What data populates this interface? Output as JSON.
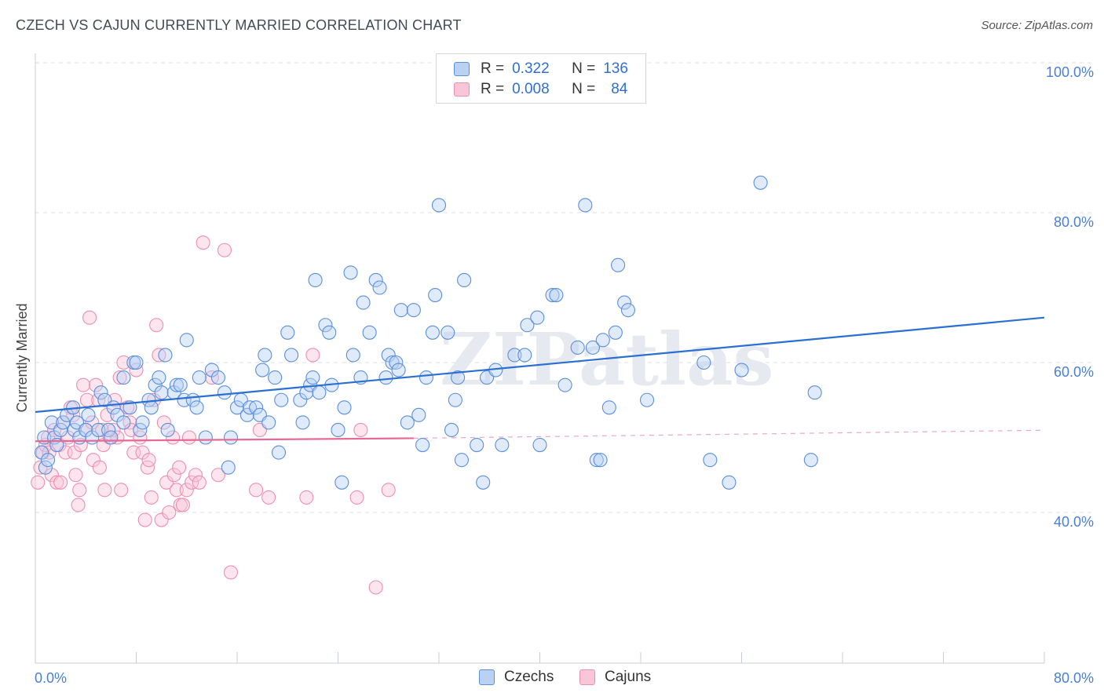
{
  "header": {
    "title": "CZECH VS CAJUN CURRENTLY MARRIED CORRELATION CHART",
    "source": "Source: ZipAtlas.com"
  },
  "watermark": "ZIPatlas",
  "legend": {
    "rows": [
      {
        "r_label": "R =",
        "r_value": "0.322",
        "n_label": "N =",
        "n_value": "136"
      },
      {
        "r_label": "R =",
        "r_value": "0.008",
        "n_label": "N =",
        "n_value": "84"
      }
    ]
  },
  "colors": {
    "czechs_stroke": "#5b8fdc",
    "czechs_fill": "#b9d1f3",
    "cajuns_stroke": "#ec8fb0",
    "cajuns_fill": "#f8c6d6",
    "czechs_line": "#2a6fd2",
    "cajuns_line": "#e56a95",
    "axis_label": "#4a7fd4"
  },
  "chart_data": {
    "type": "scatter",
    "title": "CZECH VS CAJUN CURRENTLY MARRIED CORRELATION CHART",
    "xlabel": "",
    "ylabel": "Currently Married",
    "xlim": [
      0,
      80
    ],
    "ylim": [
      20,
      102
    ],
    "x_tick_labels": [
      "0.0%",
      "80.0%"
    ],
    "y_ticks": [
      40,
      60,
      80,
      100
    ],
    "y_tick_labels": [
      "40.0%",
      "60.0%",
      "80.0%",
      "100.0%"
    ],
    "grid": "horizontal dashed",
    "legend_position": "top-center",
    "series": [
      {
        "name": "Czechs",
        "R": 0.322,
        "N": 136,
        "trend": {
          "x": [
            0,
            80
          ],
          "y": [
            53.4,
            66.0
          ]
        },
        "points": [
          [
            0.5,
            48
          ],
          [
            0.7,
            50
          ],
          [
            0.8,
            46
          ],
          [
            1,
            47
          ],
          [
            1.3,
            52
          ],
          [
            1.5,
            50
          ],
          [
            1.7,
            49
          ],
          [
            2,
            51
          ],
          [
            2.2,
            52
          ],
          [
            2.5,
            53
          ],
          [
            3,
            54
          ],
          [
            3.1,
            51
          ],
          [
            3.3,
            52
          ],
          [
            3.5,
            50
          ],
          [
            4,
            51
          ],
          [
            4.2,
            53
          ],
          [
            4.5,
            50
          ],
          [
            5,
            51
          ],
          [
            5.2,
            56
          ],
          [
            5.5,
            55
          ],
          [
            5.8,
            51
          ],
          [
            6,
            50
          ],
          [
            6.2,
            54
          ],
          [
            6.5,
            53
          ],
          [
            7,
            52
          ],
          [
            7,
            58
          ],
          [
            7.5,
            54
          ],
          [
            7.8,
            60
          ],
          [
            8,
            60
          ],
          [
            8.3,
            51
          ],
          [
            8.5,
            52
          ],
          [
            9,
            55
          ],
          [
            9.2,
            54
          ],
          [
            9.5,
            57
          ],
          [
            9.8,
            58
          ],
          [
            10,
            56
          ],
          [
            10.3,
            61
          ],
          [
            10.5,
            51
          ],
          [
            11,
            56
          ],
          [
            11.2,
            57
          ],
          [
            11.5,
            57
          ],
          [
            11.8,
            55
          ],
          [
            12,
            63
          ],
          [
            12.5,
            55
          ],
          [
            12.8,
            54
          ],
          [
            13,
            58
          ],
          [
            13.5,
            50
          ],
          [
            14,
            59
          ],
          [
            14.5,
            58
          ],
          [
            15,
            56
          ],
          [
            15.3,
            46
          ],
          [
            15.5,
            50
          ],
          [
            16,
            54
          ],
          [
            16.3,
            55
          ],
          [
            16.8,
            53
          ],
          [
            17,
            54
          ],
          [
            17.5,
            54
          ],
          [
            17.8,
            53
          ],
          [
            18,
            59
          ],
          [
            18.2,
            61
          ],
          [
            18.5,
            52
          ],
          [
            19,
            58
          ],
          [
            19.3,
            48
          ],
          [
            19.5,
            55
          ],
          [
            20,
            64
          ],
          [
            20.3,
            61
          ],
          [
            21,
            55
          ],
          [
            21.2,
            52
          ],
          [
            21.5,
            56
          ],
          [
            21.8,
            57
          ],
          [
            22,
            58
          ],
          [
            22.2,
            71
          ],
          [
            22.5,
            56
          ],
          [
            23,
            65
          ],
          [
            23.3,
            64
          ],
          [
            23.5,
            57
          ],
          [
            24,
            51
          ],
          [
            24.3,
            44
          ],
          [
            24.5,
            54
          ],
          [
            25,
            72
          ],
          [
            25.2,
            61
          ],
          [
            25.8,
            58
          ],
          [
            26,
            68
          ],
          [
            26.5,
            64
          ],
          [
            27,
            71
          ],
          [
            27.3,
            70
          ],
          [
            27.8,
            58
          ],
          [
            28,
            61
          ],
          [
            28.3,
            60
          ],
          [
            28.6,
            60
          ],
          [
            28.8,
            59
          ],
          [
            29,
            67
          ],
          [
            29.5,
            52
          ],
          [
            30,
            67
          ],
          [
            30.4,
            53
          ],
          [
            30.7,
            49
          ],
          [
            31,
            58
          ],
          [
            31.5,
            64
          ],
          [
            31.7,
            69
          ],
          [
            32,
            81
          ],
          [
            32.7,
            64
          ],
          [
            33,
            51
          ],
          [
            33.3,
            55
          ],
          [
            33.5,
            58
          ],
          [
            33.8,
            47
          ],
          [
            34,
            71
          ],
          [
            35,
            49
          ],
          [
            35.5,
            44
          ],
          [
            35.8,
            58
          ],
          [
            36.5,
            59
          ],
          [
            37,
            49
          ],
          [
            38,
            61
          ],
          [
            38.8,
            61
          ],
          [
            39,
            65
          ],
          [
            39.8,
            66
          ],
          [
            40,
            49
          ],
          [
            41,
            69
          ],
          [
            41.3,
            69
          ],
          [
            42,
            57
          ],
          [
            43,
            62
          ],
          [
            43.6,
            81
          ],
          [
            44.2,
            62
          ],
          [
            44.5,
            47
          ],
          [
            44.8,
            47
          ],
          [
            45,
            63
          ],
          [
            45.5,
            54
          ],
          [
            46,
            64
          ],
          [
            46.2,
            73
          ],
          [
            46.7,
            68
          ],
          [
            47,
            67
          ],
          [
            48.5,
            55
          ],
          [
            53,
            60
          ],
          [
            53.5,
            47
          ],
          [
            55,
            44
          ],
          [
            56,
            59
          ],
          [
            57.5,
            84
          ],
          [
            61.5,
            47
          ],
          [
            61.8,
            56
          ]
        ]
      },
      {
        "name": "Cajuns",
        "R": 0.008,
        "N": 84,
        "trend": {
          "x": [
            0,
            30
          ],
          "y": [
            49.5,
            49.9
          ]
        },
        "points": [
          [
            0.2,
            44
          ],
          [
            0.4,
            46
          ],
          [
            0.6,
            48
          ],
          [
            0.8,
            49
          ],
          [
            1,
            50
          ],
          [
            1.1,
            48
          ],
          [
            1.3,
            45
          ],
          [
            1.5,
            51
          ],
          [
            1.7,
            44
          ],
          [
            1.9,
            49
          ],
          [
            2,
            44
          ],
          [
            2.2,
            52
          ],
          [
            2.4,
            48
          ],
          [
            2.6,
            50
          ],
          [
            2.8,
            54
          ],
          [
            3,
            53
          ],
          [
            3.1,
            48
          ],
          [
            3.2,
            45
          ],
          [
            3.4,
            41
          ],
          [
            3.5,
            43
          ],
          [
            3.6,
            49
          ],
          [
            3.8,
            57
          ],
          [
            4,
            51
          ],
          [
            4.1,
            55
          ],
          [
            4.3,
            66
          ],
          [
            4.5,
            52
          ],
          [
            4.6,
            47
          ],
          [
            4.8,
            57
          ],
          [
            5,
            55
          ],
          [
            5.1,
            46
          ],
          [
            5.3,
            51
          ],
          [
            5.4,
            49
          ],
          [
            5.5,
            43
          ],
          [
            5.7,
            53
          ],
          [
            5.9,
            50
          ],
          [
            6.2,
            51
          ],
          [
            6.3,
            55
          ],
          [
            6.5,
            50
          ],
          [
            6.7,
            58
          ],
          [
            6.8,
            43
          ],
          [
            7,
            60
          ],
          [
            7.3,
            54
          ],
          [
            7.5,
            52
          ],
          [
            7.6,
            51
          ],
          [
            7.8,
            48
          ],
          [
            8,
            59
          ],
          [
            8.3,
            50
          ],
          [
            8.5,
            48
          ],
          [
            8.7,
            39
          ],
          [
            8.9,
            46
          ],
          [
            9.0,
            47
          ],
          [
            9.2,
            42
          ],
          [
            9.4,
            55
          ],
          [
            9.6,
            65
          ],
          [
            9.8,
            61
          ],
          [
            10,
            39
          ],
          [
            10.2,
            52
          ],
          [
            10.4,
            44
          ],
          [
            10.6,
            40
          ],
          [
            10.9,
            50
          ],
          [
            11,
            45
          ],
          [
            11.2,
            43
          ],
          [
            11.4,
            46
          ],
          [
            11.5,
            41
          ],
          [
            11.7,
            41
          ],
          [
            12,
            43
          ],
          [
            12.2,
            50
          ],
          [
            12.4,
            44
          ],
          [
            12.7,
            45
          ],
          [
            13,
            44
          ],
          [
            13.3,
            76
          ],
          [
            14,
            58
          ],
          [
            14.5,
            45
          ],
          [
            15,
            75
          ],
          [
            15.5,
            32
          ],
          [
            17.5,
            43
          ],
          [
            17.8,
            51
          ],
          [
            18.5,
            42
          ],
          [
            21.5,
            42
          ],
          [
            22,
            61
          ],
          [
            25.5,
            42
          ],
          [
            25.8,
            51
          ],
          [
            27,
            30
          ],
          [
            28,
            43
          ]
        ]
      }
    ]
  },
  "bottom_legend": {
    "czechs": "Czechs",
    "cajuns": "Cajuns"
  }
}
